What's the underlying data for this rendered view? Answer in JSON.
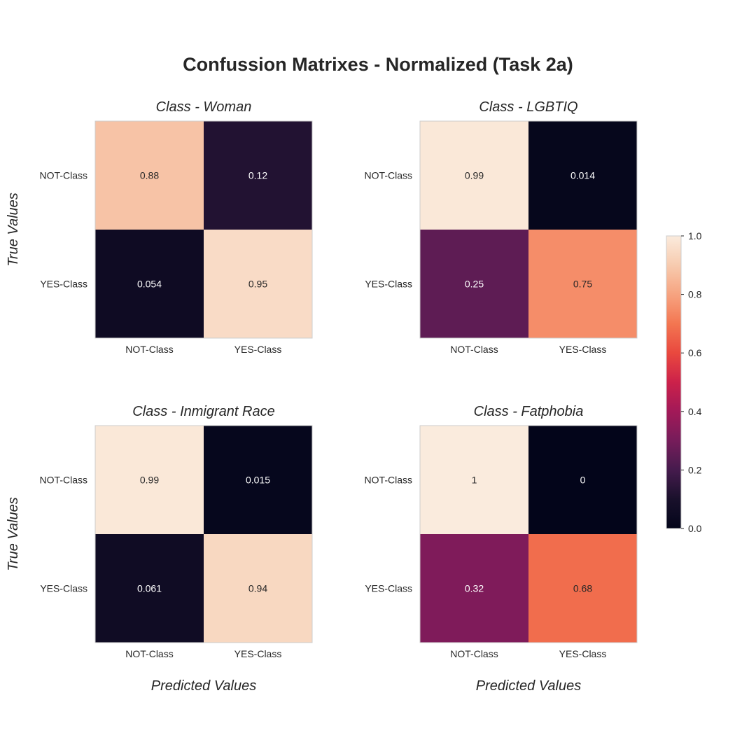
{
  "figure_title": "Confussion Matrixes - Normalized (Task 2a)",
  "chart_data": [
    {
      "type": "heatmap",
      "title": "Class - Woman",
      "xlabel": "",
      "ylabel": "True Values",
      "x_categories": [
        "NOT-Class",
        "YES-Class"
      ],
      "y_categories": [
        "NOT-Class",
        "YES-Class"
      ],
      "values": [
        [
          0.88,
          0.12
        ],
        [
          0.054,
          0.95
        ]
      ],
      "labels": [
        [
          "0.88",
          "0.12"
        ],
        [
          "0.054",
          "0.95"
        ]
      ]
    },
    {
      "type": "heatmap",
      "title": "Class - LGBTIQ",
      "xlabel": "",
      "ylabel": "",
      "x_categories": [
        "NOT-Class",
        "YES-Class"
      ],
      "y_categories": [
        "NOT-Class",
        "YES-Class"
      ],
      "values": [
        [
          0.99,
          0.014
        ],
        [
          0.25,
          0.75
        ]
      ],
      "labels": [
        [
          "0.99",
          "0.014"
        ],
        [
          "0.25",
          "0.75"
        ]
      ]
    },
    {
      "type": "heatmap",
      "title": "Class - Inmigrant Race",
      "xlabel": "Predicted Values",
      "ylabel": "True Values",
      "x_categories": [
        "NOT-Class",
        "YES-Class"
      ],
      "y_categories": [
        "NOT-Class",
        "YES-Class"
      ],
      "values": [
        [
          0.99,
          0.015
        ],
        [
          0.061,
          0.94
        ]
      ],
      "labels": [
        [
          "0.99",
          "0.015"
        ],
        [
          "0.061",
          "0.94"
        ]
      ]
    },
    {
      "type": "heatmap",
      "title": "Class - Fatphobia",
      "xlabel": "Predicted Values",
      "ylabel": "",
      "x_categories": [
        "NOT-Class",
        "YES-Class"
      ],
      "y_categories": [
        "NOT-Class",
        "YES-Class"
      ],
      "values": [
        [
          1.0,
          0.0
        ],
        [
          0.32,
          0.68
        ]
      ],
      "labels": [
        [
          "1",
          "0"
        ],
        [
          "0.32",
          "0.68"
        ]
      ]
    }
  ],
  "colorbar": {
    "colormap": "rocket",
    "range": [
      0,
      1
    ],
    "ticks": [
      "0.0",
      "0.2",
      "0.4",
      "0.6",
      "0.8",
      "1.0"
    ]
  }
}
